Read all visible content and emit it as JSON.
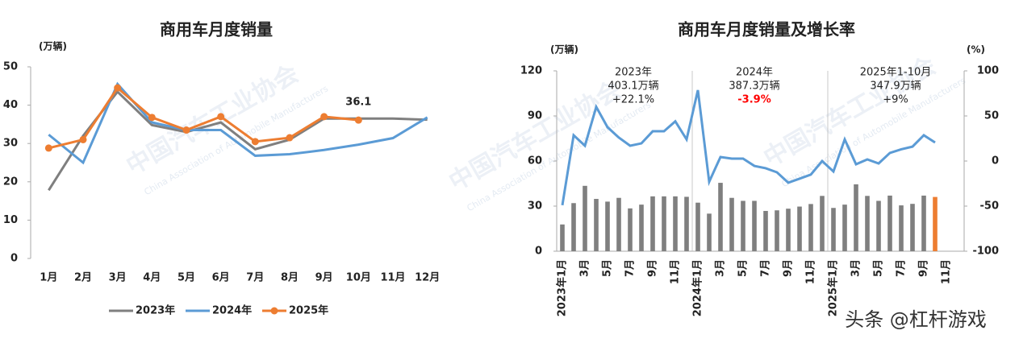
{
  "chart_data": [
    {
      "type": "line",
      "title": "商用车月度销量",
      "y_label": "(万辆)",
      "categories": [
        "1月",
        "2月",
        "3月",
        "4月",
        "5月",
        "6月",
        "7月",
        "8月",
        "9月",
        "10月",
        "11月",
        "12月"
      ],
      "ylim": [
        0,
        50
      ],
      "yticks": [
        0,
        10,
        20,
        30,
        40,
        50
      ],
      "series": [
        {
          "name": "2023年",
          "color": "#7f7f7f",
          "values": [
            17.8,
            32,
            43.5,
            34.8,
            33,
            35.5,
            28.5,
            31,
            36.5,
            36.5,
            36.5,
            36.2
          ]
        },
        {
          "name": "2024年",
          "color": "#5b9bd5",
          "values": [
            32.3,
            25,
            45.5,
            35.5,
            33.5,
            33.5,
            26.8,
            27.2,
            28.3,
            29.7,
            31.4,
            36.8
          ]
        },
        {
          "name": "2025年",
          "color": "#ed7d31",
          "markers": true,
          "values": [
            28.8,
            31,
            44.5,
            36.8,
            33.5,
            37,
            30.5,
            31.5,
            37,
            36.1,
            null,
            null
          ],
          "value_labels": [
            null,
            null,
            null,
            null,
            null,
            null,
            null,
            null,
            null,
            "36.1",
            null,
            null
          ]
        }
      ],
      "legend": "bottom"
    },
    {
      "type": "combo",
      "title": "商用车月度销量及增长率",
      "y_label": "(万辆)",
      "y2_label": "(%)",
      "categories": [
        "2023年1月",
        null,
        "3月",
        null,
        "5月",
        null,
        "7月",
        null,
        "9月",
        null,
        "11月",
        null,
        "2024年1月",
        null,
        "3月",
        null,
        "5月",
        null,
        "7月",
        null,
        "9月",
        null,
        "11月",
        null,
        "2025年1月",
        null,
        "3月",
        null,
        "5月",
        null,
        "7月",
        null,
        "9月",
        null,
        "11月"
      ],
      "ylim": [
        0,
        120
      ],
      "yticks": [
        0,
        30,
        60,
        90,
        120
      ],
      "y2lim": [
        -100,
        100
      ],
      "y2ticks": [
        -100,
        -50,
        0,
        50,
        100
      ],
      "series": [
        {
          "kind": "bar",
          "color": "#7f7f7f",
          "highlight_color": "#ed7d31",
          "highlight_index": 33,
          "values": [
            17.8,
            32,
            43.5,
            34.8,
            33,
            35.5,
            28.5,
            31,
            36.5,
            36.5,
            36.5,
            36.2,
            32.3,
            25,
            45.5,
            35.5,
            33.5,
            33.5,
            26.8,
            27.2,
            28.3,
            29.7,
            31.4,
            36.8,
            28.8,
            31,
            44.5,
            36.8,
            33.5,
            37,
            30.5,
            31.5,
            37,
            36.1,
            null
          ]
        },
        {
          "kind": "line",
          "axis": "y2",
          "color": "#5b9bd5",
          "values": [
            -49,
            28.6,
            17,
            60,
            37.5,
            26,
            17,
            19.6,
            33,
            33,
            44,
            24,
            78.6,
            -23,
            4.5,
            2.7,
            2.7,
            -5.4,
            -8,
            -12.5,
            -24,
            -19.6,
            -15,
            0,
            -11.6,
            24,
            -3.6,
            1.8,
            -2.7,
            9,
            13,
            16,
            28.6,
            20.5,
            null
          ]
        }
      ],
      "annotations": [
        {
          "lines": [
            "2023年",
            "403.1万辆",
            "+22.1%"
          ]
        },
        {
          "lines": [
            "2024年",
            "387.3万辆",
            "-3.9%"
          ],
          "last_line_color": "#ff0000"
        },
        {
          "lines": [
            "2025年1-10月",
            "347.9万辆",
            "+9%"
          ]
        }
      ]
    }
  ],
  "watermark": [
    "中国汽车工业协会",
    "China Association of Automobile Manufacturers"
  ],
  "footer": "头条 @杠杆游戏"
}
